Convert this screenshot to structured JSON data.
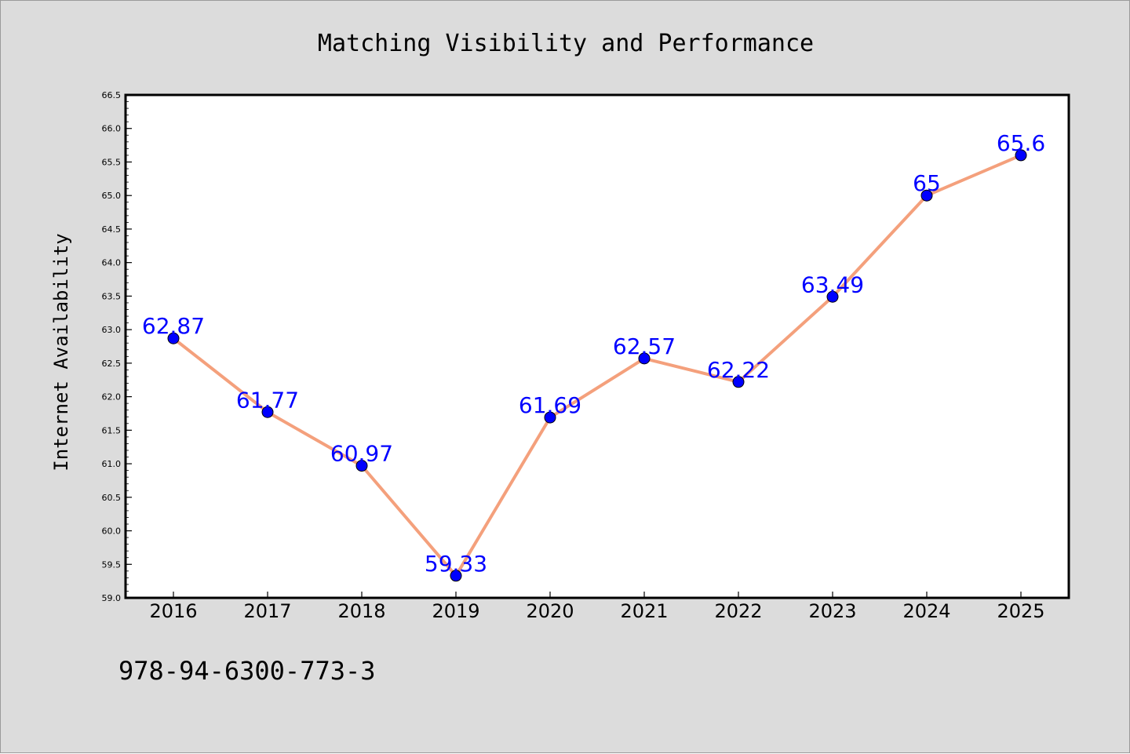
{
  "chart_data": {
    "type": "line",
    "title": "Matching Visibility and Performance",
    "xlabel": "",
    "ylabel": "Internet Availability",
    "categories": [
      "2016",
      "2017",
      "2018",
      "2019",
      "2020",
      "2021",
      "2022",
      "2023",
      "2024",
      "2025"
    ],
    "series": [
      {
        "values": [
          62.87,
          61.77,
          60.97,
          59.33,
          61.69,
          62.57,
          62.22,
          63.49,
          65,
          65.6
        ],
        "labels": [
          "62.87",
          "61.77",
          "60.97",
          "59.33",
          "61.69",
          "62.57",
          "62.22",
          "63.49",
          "65",
          "65.6"
        ],
        "line_color": "#f4a07c",
        "marker_color": "#0000ff"
      }
    ],
    "ylim": [
      59.0,
      66.5
    ],
    "yticks": [
      "59.0",
      "59.5",
      "60.0",
      "60.5",
      "61.0",
      "61.5",
      "62.0",
      "62.5",
      "63.0",
      "63.5",
      "64.0",
      "64.5",
      "65.0",
      "65.5",
      "66.0",
      "66.5"
    ],
    "grid": false,
    "legend": "none",
    "data_label_color": "#0000ff"
  },
  "footer_text": "978-94-6300-773-3",
  "colors": {
    "figure_background": "#dcdcdc",
    "plot_background": "#ffffff",
    "axis": "#000000"
  }
}
